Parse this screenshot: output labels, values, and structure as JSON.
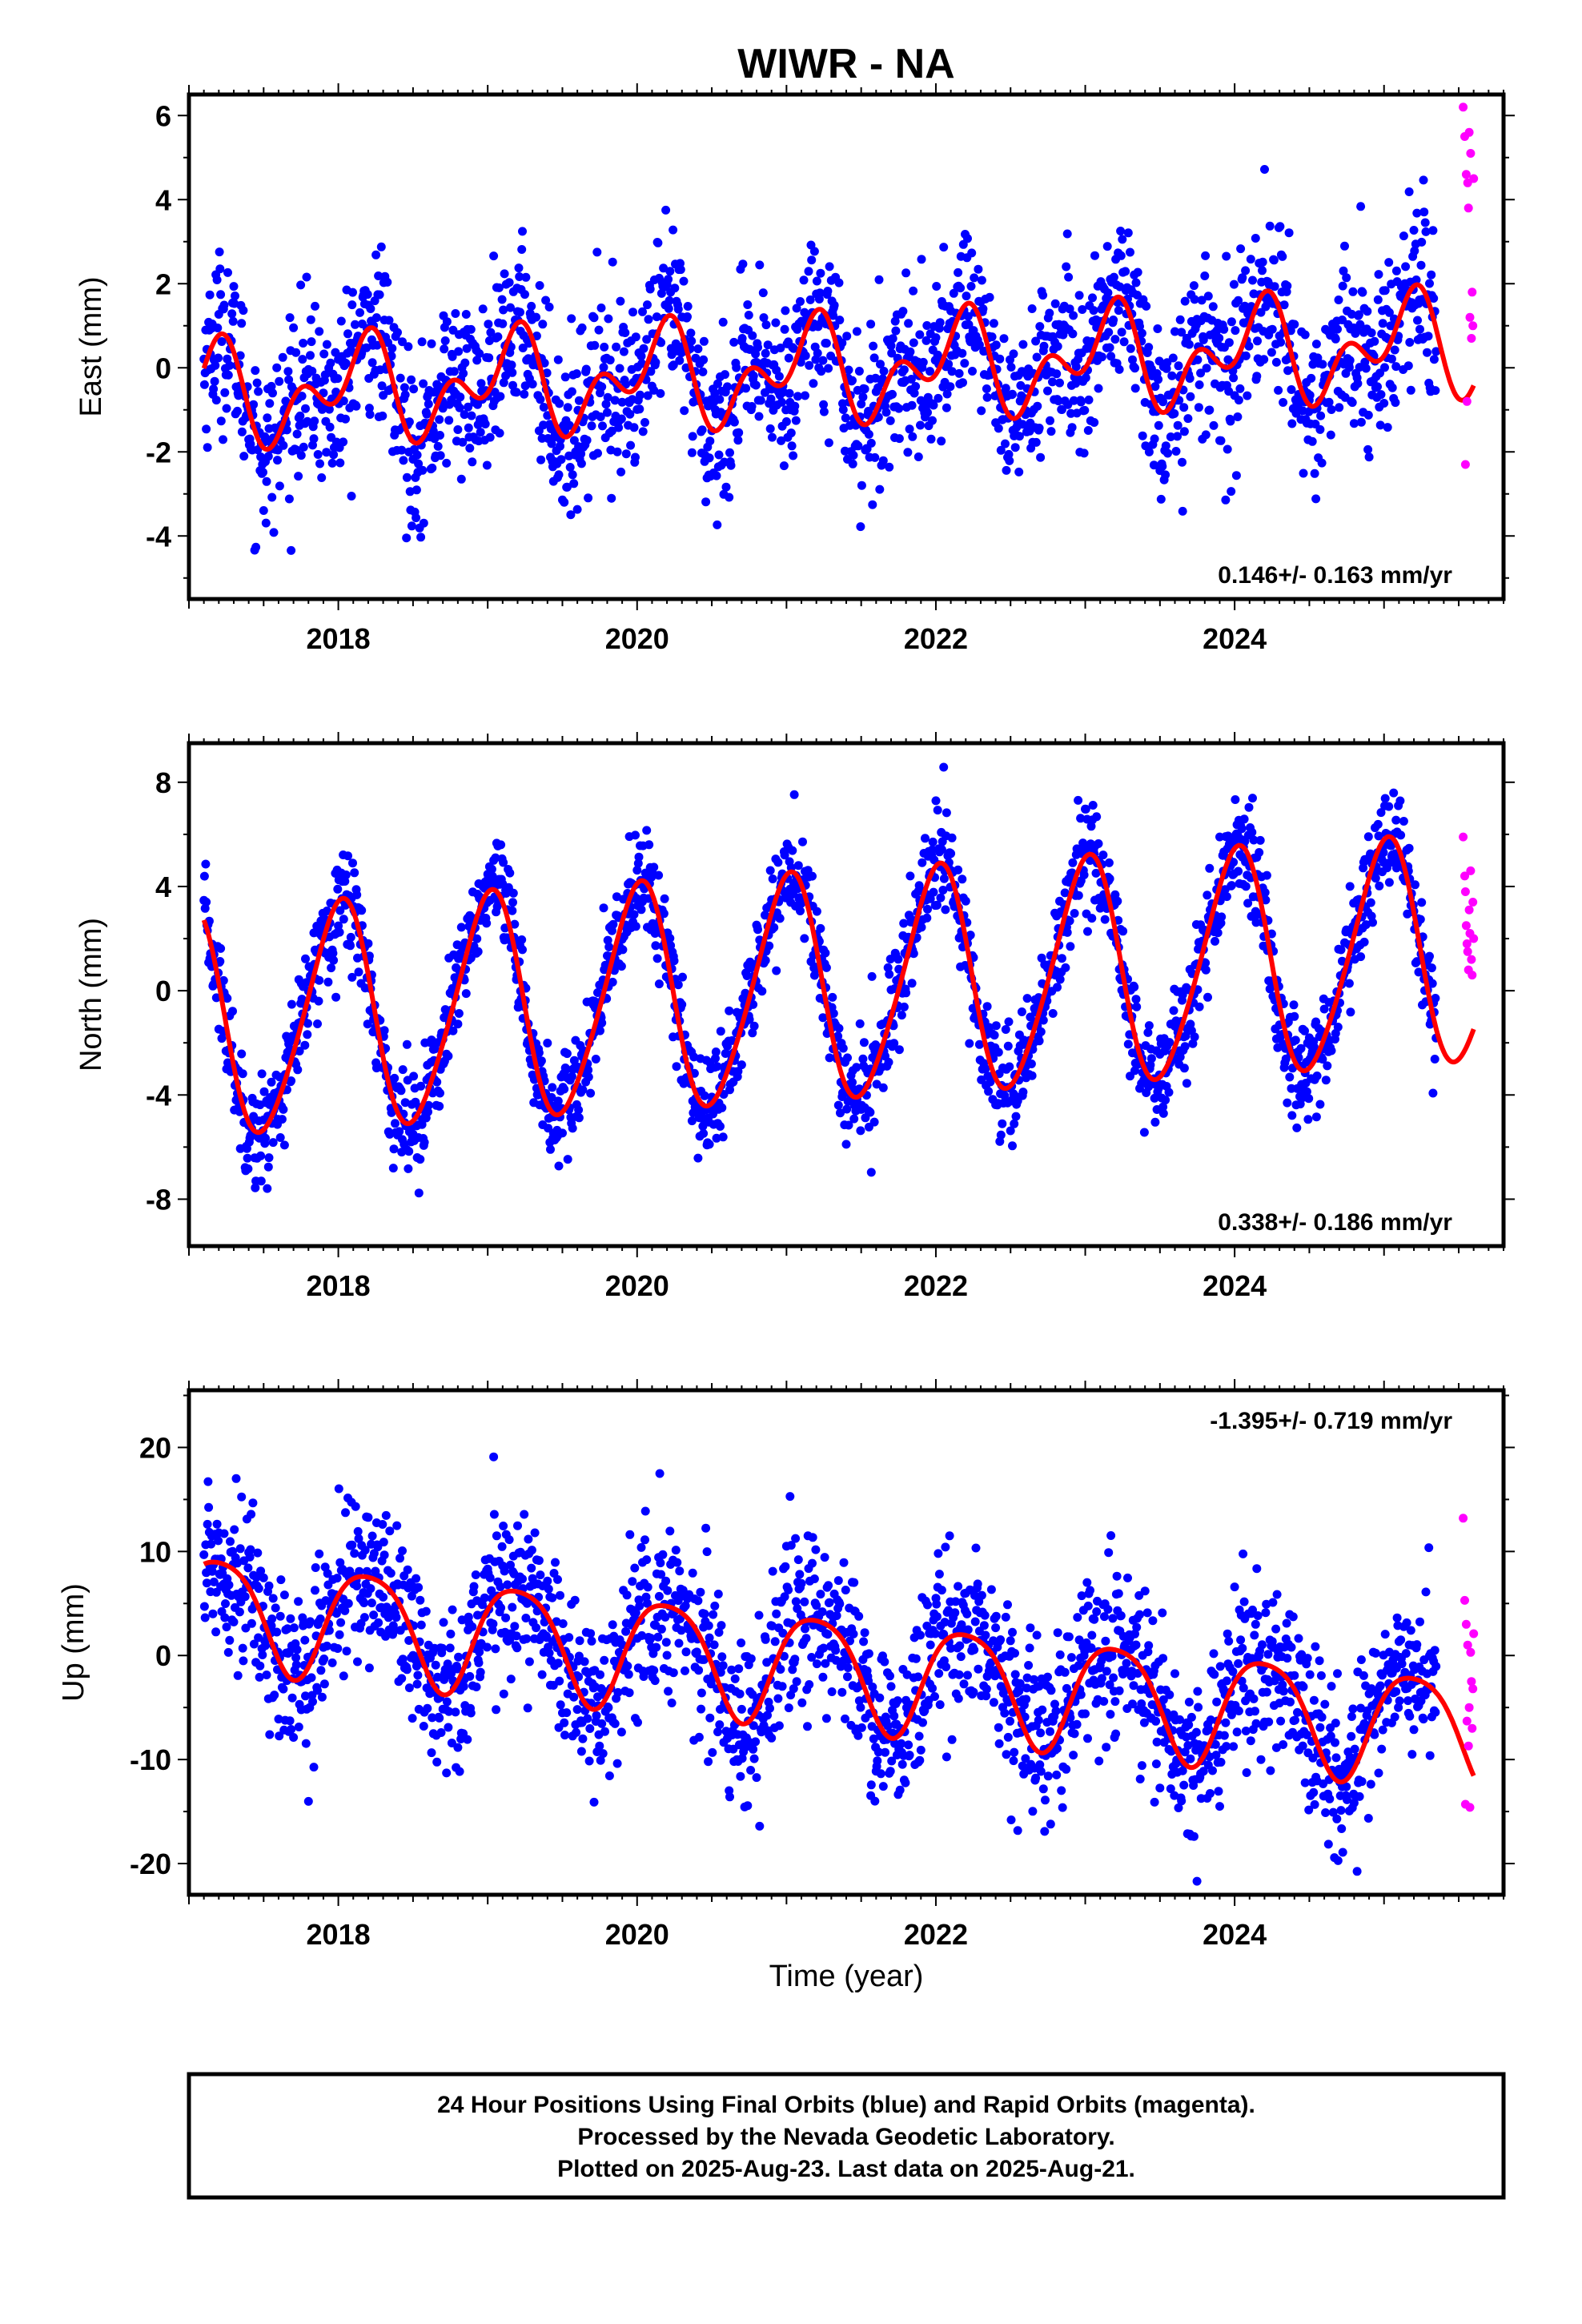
{
  "figure": {
    "title": "WIWR - NA",
    "xlabel": "Time (year)",
    "footer": [
      "24 Hour Positions Using Final Orbits (blue) and Rapid Orbits (magenta).",
      "Processed by the Nevada Geodetic Laboratory.",
      "Plotted on 2025-Aug-23. Last data on 2025-Aug-21."
    ],
    "colors": {
      "final_orbits": "#0000ff",
      "rapid_orbits": "#ff00ff",
      "model_fit": "#ff0000",
      "frame": "#000000"
    }
  },
  "chart_data": [
    {
      "type": "scatter",
      "ylabel": "East (mm)",
      "rate_label": "0.146+/- 0.163 mm/yr",
      "rate_position": "bottom-right",
      "xlim": [
        2017.0,
        2025.8
      ],
      "ylim": [
        -5.5,
        6.5
      ],
      "xticks": [
        2018,
        2020,
        2022,
        2024
      ],
      "yticks": [
        -4,
        -2,
        0,
        2,
        4,
        6
      ],
      "grid": false,
      "series": [
        {
          "values": {
            "start": 2017.1,
            "end": 2025.35,
            "step": 0.004,
            "offset": -0.1,
            "trend": 0.146,
            "ref_year": 2021.0,
            "annual": {
              "amplitude": 0.85,
              "phase": 0.7
            },
            "semiannual": {
              "amplitude": 0.75,
              "phase": 4.8
            },
            "scatter": 1.0
          }
        },
        {
          "x": [
            2025.53,
            2025.54,
            2025.545,
            2025.55,
            2025.555,
            2025.56,
            2025.565,
            2025.57,
            2025.575,
            2025.58,
            2025.585,
            2025.59,
            2025.595,
            2025.6
          ],
          "values": [
            6.2,
            5.5,
            -2.3,
            4.6,
            -0.8,
            4.4,
            3.8,
            5.6,
            1.2,
            5.1,
            0.7,
            1.8,
            1.0,
            4.5
          ]
        },
        {
          "values": {
            "start": 2017.1,
            "end": 2025.6,
            "step": 0.01,
            "offset": -0.1,
            "trend": 0.146,
            "ref_year": 2021.0,
            "annual": {
              "amplitude": 0.85,
              "phase": 0.7
            },
            "semiannual": {
              "amplitude": 0.75,
              "phase": 4.8
            }
          }
        }
      ]
    },
    {
      "type": "scatter",
      "ylabel": "North (mm)",
      "rate_label": "0.338+/- 0.186 mm/yr",
      "rate_position": "bottom-right",
      "xlim": [
        2017.0,
        2025.8
      ],
      "ylim": [
        -9.8,
        9.5
      ],
      "xticks": [
        2018,
        2020,
        2022,
        2024
      ],
      "yticks": [
        -8,
        -4,
        0,
        4,
        8
      ],
      "grid": false,
      "series": [
        {
          "values": {
            "start": 2017.1,
            "end": 2025.35,
            "step": 0.004,
            "offset": 0.0,
            "trend": 0.338,
            "ref_year": 2021.0,
            "annual": {
              "amplitude": 4.3,
              "phase": 1.55
            },
            "semiannual": {
              "amplitude": 0.5,
              "phase": 0.3
            },
            "scatter": 1.0
          }
        },
        {
          "x": [
            2025.53,
            2025.54,
            2025.545,
            2025.55,
            2025.555,
            2025.56,
            2025.565,
            2025.57,
            2025.575,
            2025.58,
            2025.585,
            2025.59,
            2025.595,
            2025.6
          ],
          "values": [
            5.9,
            4.4,
            3.8,
            2.5,
            1.8,
            1.5,
            0.8,
            3.1,
            2.2,
            4.6,
            1.2,
            0.6,
            3.4,
            2.0
          ]
        },
        {
          "values": {
            "start": 2017.1,
            "end": 2025.6,
            "step": 0.01,
            "offset": 0.0,
            "trend": 0.338,
            "ref_year": 2021.0,
            "annual": {
              "amplitude": 4.3,
              "phase": 1.55
            },
            "semiannual": {
              "amplitude": 0.5,
              "phase": 0.3
            }
          }
        }
      ]
    },
    {
      "type": "scatter",
      "ylabel": "Up (mm)",
      "rate_label": "-1.395+/- 0.719 mm/yr",
      "rate_position": "top-right",
      "xlim": [
        2017.0,
        2025.8
      ],
      "ylim": [
        -23.0,
        25.5
      ],
      "xticks": [
        2018,
        2020,
        2022,
        2024
      ],
      "yticks": [
        -20,
        -10,
        0,
        10,
        20
      ],
      "grid": false,
      "series": [
        {
          "values": {
            "start": 2017.1,
            "end": 2025.35,
            "step": 0.004,
            "offset": -0.8,
            "trend": -1.395,
            "ref_year": 2021.0,
            "annual": {
              "amplitude": 5.3,
              "phase": 0.3
            },
            "semiannual": {
              "amplitude": 0.9,
              "phase": 2.0
            },
            "scatter": 4.0
          }
        },
        {
          "x": [
            2025.53,
            2025.54,
            2025.545,
            2025.55,
            2025.555,
            2025.56,
            2025.565,
            2025.57,
            2025.575,
            2025.58,
            2025.585,
            2025.59,
            2025.595,
            2025.6
          ],
          "values": [
            13.2,
            5.3,
            -14.3,
            3.0,
            -6.3,
            1.0,
            -8.7,
            -5.0,
            -14.6,
            0.3,
            -2.5,
            -7.0,
            -3.2,
            2.1
          ]
        },
        {
          "values": {
            "start": 2017.1,
            "end": 2025.6,
            "step": 0.01,
            "offset": -0.8,
            "trend": -1.395,
            "ref_year": 2021.0,
            "annual": {
              "amplitude": 5.3,
              "phase": 0.3
            },
            "semiannual": {
              "amplitude": 0.9,
              "phase": 2.0
            }
          }
        }
      ]
    }
  ]
}
